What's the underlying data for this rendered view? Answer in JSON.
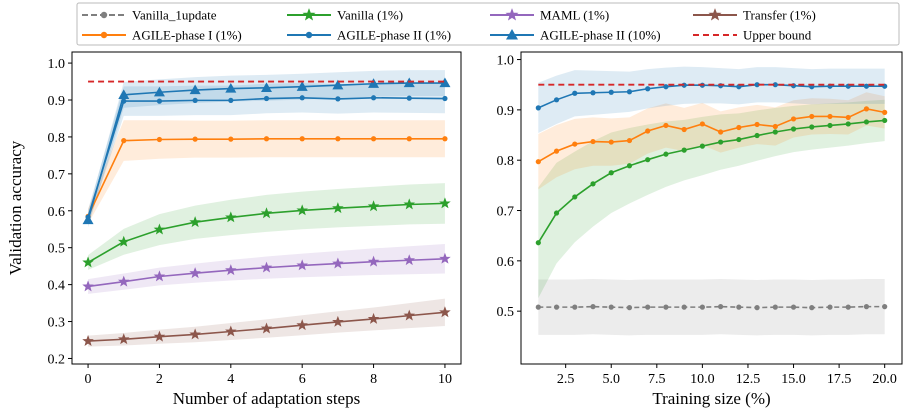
{
  "legend": [
    {
      "label": "Vanilla_1update",
      "color": "#7f7f7f",
      "marker": "circle",
      "dash": true
    },
    {
      "label": "Vanilla (1%)",
      "color": "#2ca02c",
      "marker": "star",
      "dash": false
    },
    {
      "label": "MAML (1%)",
      "color": "#9467bd",
      "marker": "star",
      "dash": false
    },
    {
      "label": "Transfer (1%)",
      "color": "#8c564b",
      "marker": "star",
      "dash": false
    },
    {
      "label": "AGILE-phase I (1%)",
      "color": "#ff7f0e",
      "marker": "circle",
      "dash": false
    },
    {
      "label": "AGILE-phase II (1%)",
      "color": "#1f77b4",
      "marker": "circle",
      "dash": false
    },
    {
      "label": "AGILE-phase II (10%)",
      "color": "#1f77b4",
      "marker": "triangle",
      "dash": false
    },
    {
      "label": "Upper bound",
      "color": "#d62728",
      "marker": "none",
      "dash": true
    }
  ],
  "chart_data": [
    {
      "type": "line",
      "xlabel": "Number of adaptation steps",
      "ylabel": "Validation accuracy",
      "xlim": [
        -0.45,
        10.45
      ],
      "ylim": [
        0.185,
        1.03
      ],
      "xticks": [
        0,
        2,
        4,
        6,
        8,
        10
      ],
      "yticks": [
        0.2,
        0.3,
        0.4,
        0.5,
        0.6,
        0.7,
        0.8,
        0.9,
        1.0
      ],
      "x": [
        0,
        1,
        2,
        3,
        4,
        5,
        6,
        7,
        8,
        9,
        10
      ],
      "series": [
        {
          "name": "Transfer (1%)",
          "color": "#8c564b",
          "marker": "star",
          "values": [
            0.247,
            0.252,
            0.259,
            0.265,
            0.273,
            0.281,
            0.29,
            0.299,
            0.307,
            0.316,
            0.325
          ],
          "band": [
            0.015,
            0.017,
            0.019,
            0.021,
            0.023,
            0.025,
            0.027,
            0.029,
            0.031,
            0.034,
            0.037
          ]
        },
        {
          "name": "MAML (1%)",
          "color": "#9467bd",
          "marker": "star",
          "values": [
            0.395,
            0.408,
            0.422,
            0.431,
            0.439,
            0.446,
            0.452,
            0.457,
            0.462,
            0.466,
            0.47
          ],
          "band": [
            0.02,
            0.022,
            0.024,
            0.026,
            0.028,
            0.03,
            0.032,
            0.034,
            0.036,
            0.038,
            0.04
          ]
        },
        {
          "name": "Vanilla (1%)",
          "color": "#2ca02c",
          "marker": "star",
          "values": [
            0.46,
            0.516,
            0.549,
            0.569,
            0.582,
            0.593,
            0.601,
            0.607,
            0.612,
            0.617,
            0.62
          ],
          "band": [
            0.02,
            0.035,
            0.042,
            0.045,
            0.048,
            0.05,
            0.051,
            0.052,
            0.053,
            0.054,
            0.055
          ]
        },
        {
          "name": "AGILE-phase I (1%)",
          "color": "#ff7f0e",
          "marker": "circle",
          "values": [
            0.585,
            0.79,
            0.793,
            0.794,
            0.794,
            0.795,
            0.795,
            0.795,
            0.795,
            0.795,
            0.795
          ],
          "band": [
            0.02,
            0.055,
            0.052,
            0.05,
            0.05,
            0.05,
            0.05,
            0.05,
            0.05,
            0.05,
            0.05
          ]
        },
        {
          "name": "AGILE-phase II (1%)",
          "color": "#1f77b4",
          "marker": "circle",
          "values": [
            0.583,
            0.897,
            0.897,
            0.899,
            0.899,
            0.904,
            0.906,
            0.903,
            0.906,
            0.905,
            0.904
          ],
          "band": [
            0.02,
            0.04,
            0.04,
            0.04,
            0.04,
            0.04,
            0.04,
            0.04,
            0.04,
            0.04,
            0.04
          ]
        },
        {
          "name": "AGILE-phase II (10%)",
          "color": "#1f77b4",
          "marker": "triangle",
          "values": [
            0.575,
            0.914,
            0.921,
            0.927,
            0.931,
            0.933,
            0.936,
            0.94,
            0.944,
            0.946,
            0.946
          ],
          "band": [
            0.02,
            0.035,
            0.035,
            0.035,
            0.035,
            0.035,
            0.035,
            0.035,
            0.035,
            0.035,
            0.035
          ]
        },
        {
          "name": "Upper bound",
          "color": "#d62728",
          "marker": "none",
          "dashed": true,
          "x": [
            0,
            10
          ],
          "values": [
            0.95,
            0.95
          ],
          "band": null
        }
      ]
    },
    {
      "type": "line",
      "xlabel": "Training size (%)",
      "ylabel": "",
      "xlim": [
        0.05,
        20.95
      ],
      "ylim": [
        0.395,
        1.015
      ],
      "xticks": [
        2.5,
        5.0,
        7.5,
        10.0,
        12.5,
        15.0,
        17.5,
        20.0
      ],
      "xtick_labels": [
        "2.5",
        "5.0",
        "7.5",
        "10.0",
        "12.5",
        "15.0",
        "17.5",
        "20.0"
      ],
      "yticks": [
        0.5,
        0.6,
        0.7,
        0.8,
        0.9,
        1.0
      ],
      "x": [
        1,
        2,
        3,
        4,
        5,
        6,
        7,
        8,
        9,
        10,
        11,
        12,
        13,
        14,
        15,
        16,
        17,
        18,
        19,
        20
      ],
      "series": [
        {
          "name": "Vanilla_1update",
          "color": "#7f7f7f",
          "marker": "circle",
          "dashed": true,
          "values": [
            0.508,
            0.508,
            0.508,
            0.509,
            0.508,
            0.507,
            0.508,
            0.508,
            0.508,
            0.508,
            0.509,
            0.508,
            0.507,
            0.508,
            0.508,
            0.507,
            0.508,
            0.508,
            0.509,
            0.509
          ],
          "band": [
            0.055,
            0.055,
            0.055,
            0.055,
            0.055,
            0.055,
            0.055,
            0.055,
            0.055,
            0.055,
            0.055,
            0.055,
            0.055,
            0.055,
            0.055,
            0.055,
            0.055,
            0.055,
            0.055,
            0.055
          ]
        },
        {
          "name": "Vanilla (1%)",
          "color": "#2ca02c",
          "marker": "circle",
          "values": [
            0.636,
            0.695,
            0.727,
            0.753,
            0.775,
            0.789,
            0.801,
            0.812,
            0.82,
            0.828,
            0.836,
            0.841,
            0.849,
            0.856,
            0.862,
            0.866,
            0.869,
            0.872,
            0.876,
            0.879
          ],
          "band": [
            0.11,
            0.1,
            0.09,
            0.085,
            0.08,
            0.075,
            0.07,
            0.065,
            0.06,
            0.058,
            0.055,
            0.052,
            0.05,
            0.048,
            0.046,
            0.045,
            0.044,
            0.043,
            0.042,
            0.041
          ]
        },
        {
          "name": "AGILE-phase I (1%)",
          "color": "#ff7f0e",
          "marker": "circle",
          "values": [
            0.797,
            0.818,
            0.832,
            0.837,
            0.836,
            0.839,
            0.858,
            0.869,
            0.861,
            0.872,
            0.856,
            0.865,
            0.871,
            0.867,
            0.882,
            0.887,
            0.887,
            0.885,
            0.902,
            0.895
          ],
          "band": [
            0.055,
            0.052,
            0.05,
            0.048,
            0.047,
            0.046,
            0.045,
            0.044,
            0.043,
            0.042,
            0.041,
            0.04,
            0.039,
            0.038,
            0.037,
            0.036,
            0.035,
            0.034,
            0.033,
            0.032
          ]
        },
        {
          "name": "AGILE-phase II (1%)",
          "color": "#1f77b4",
          "marker": "circle",
          "values": [
            0.904,
            0.92,
            0.933,
            0.934,
            0.935,
            0.936,
            0.942,
            0.946,
            0.949,
            0.949,
            0.948,
            0.946,
            0.95,
            0.95,
            0.948,
            0.946,
            0.947,
            0.947,
            0.947,
            0.947
          ],
          "band": [
            0.05,
            0.048,
            0.046,
            0.044,
            0.042,
            0.04,
            0.039,
            0.038,
            0.037,
            0.036,
            0.035,
            0.035,
            0.035,
            0.035,
            0.035,
            0.035,
            0.035,
            0.035,
            0.035,
            0.035
          ]
        },
        {
          "name": "Upper bound",
          "color": "#d62728",
          "marker": "none",
          "dashed": true,
          "x": [
            1,
            20
          ],
          "values": [
            0.95,
            0.95
          ],
          "band": null
        }
      ]
    }
  ]
}
